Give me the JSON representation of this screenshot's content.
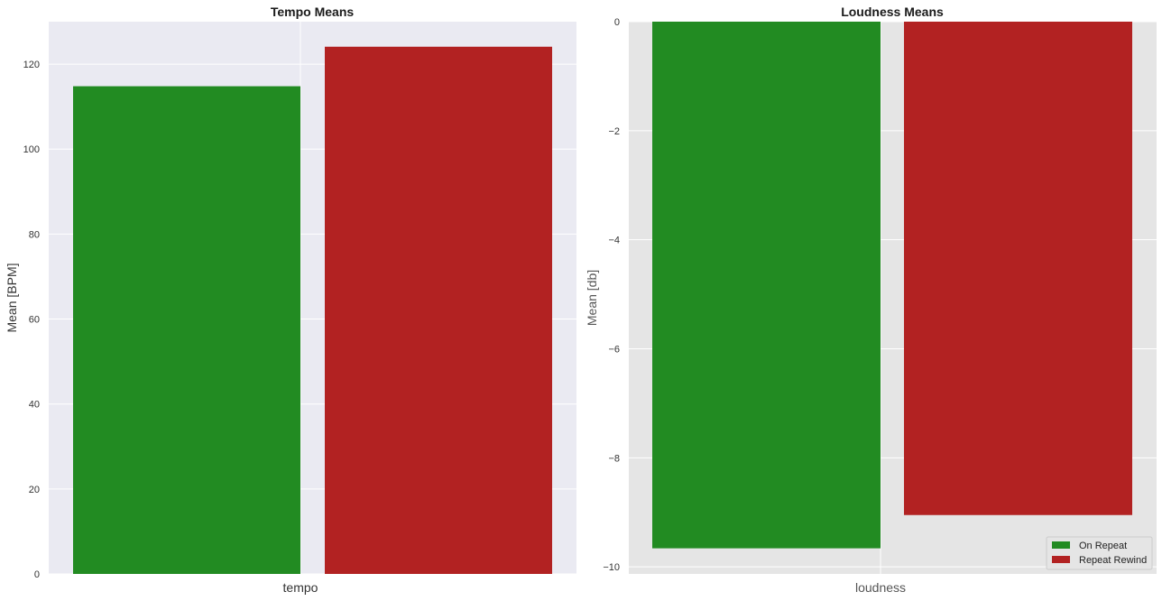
{
  "chart_data": [
    {
      "type": "bar",
      "title": "Tempo Means",
      "xlabel": "tempo",
      "ylabel": "Mean [BPM]",
      "categories": [
        "tempo"
      ],
      "series": [
        {
          "name": "On Repeat",
          "values": [
            114.8
          ]
        },
        {
          "name": "Repeat Rewind",
          "values": [
            124.1
          ]
        }
      ],
      "ylim": [
        0,
        130
      ],
      "yticks": [
        0,
        20,
        40,
        60,
        80,
        100,
        120
      ],
      "grid": true,
      "legend": "none"
    },
    {
      "type": "bar",
      "title": "Loudness Means",
      "xlabel": "loudness",
      "ylabel": "Mean [db]",
      "categories": [
        "loudness"
      ],
      "series": [
        {
          "name": "On Repeat",
          "values": [
            -9.66
          ]
        },
        {
          "name": "Repeat Rewind",
          "values": [
            -9.05
          ]
        }
      ],
      "ylim": [
        -10.13,
        0
      ],
      "yticks": [
        0,
        -2,
        -4,
        -6,
        -8,
        -10
      ],
      "grid": true,
      "legend": "lower-right"
    }
  ],
  "colors": {
    "on_repeat": "#228b22",
    "repeat_rewind": "#b22222",
    "panel1_bg": "#eaeaf2",
    "panel2_bg": "#e5e5e5",
    "grid": "#ffffff"
  }
}
